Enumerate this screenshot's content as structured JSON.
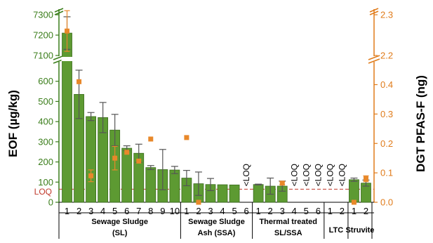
{
  "chart_data": {
    "type": "bar",
    "ylabel": "EOF (µg/kg)",
    "y2label": "DGT PFAS-F (ng)",
    "loq_label": "LOQ",
    "loq_value": 65,
    "below_loq_text": "<LOQ",
    "y_left_ticks_lower": [
      "0",
      "100",
      "200",
      "300",
      "400",
      "500",
      "600"
    ],
    "y_left_ticks_upper": [
      "7100",
      "7200",
      "7300"
    ],
    "y_right_ticks_lower": [
      "0.0",
      "0.1",
      "0.2",
      "0.3",
      "0.4"
    ],
    "y_right_ticks_upper": [
      "2.2",
      "2.3"
    ],
    "ylim_lower": [
      0,
      700
    ],
    "ylim_upper": [
      7100,
      7300
    ],
    "y2lim_lower": [
      0,
      0.48
    ],
    "y2lim_upper": [
      2.2,
      2.3
    ],
    "groups": [
      {
        "label_line1": "Sewage Sludge",
        "label_line2": "(SL)",
        "samples": [
          {
            "x": "1",
            "eof": 7210,
            "err": 80,
            "dgt": 2.26,
            "dgt_err": 0.05
          },
          {
            "x": "2",
            "eof": 535,
            "err": 120,
            "dgt": 0.41
          },
          {
            "x": "3",
            "eof": 425,
            "err": 20,
            "dgt": 0.09,
            "dgt_err": 0.02
          },
          {
            "x": "4",
            "eof": 420,
            "err": 75,
            "dgt": null
          },
          {
            "x": "5",
            "eof": 358,
            "err": 78,
            "dgt": 0.15,
            "dgt_err": 0.04
          },
          {
            "x": "6",
            "eof": 268,
            "err": 12,
            "dgt": 0.17
          },
          {
            "x": "7",
            "eof": 243,
            "err": 45,
            "dgt": 0.14
          },
          {
            "x": "8",
            "eof": 172,
            "err": 10,
            "dgt": 0.215
          },
          {
            "x": "9",
            "eof": 162,
            "err": 100,
            "dgt": null
          },
          {
            "x": "10",
            "eof": 160,
            "err": 18,
            "dgt": null
          }
        ]
      },
      {
        "label_line1": "Sewage Sludge",
        "label_line2": "Ash (SSA)",
        "samples": [
          {
            "x": "1",
            "eof": 120,
            "err": 38,
            "dgt": 0.22
          },
          {
            "x": "2",
            "eof": 92,
            "err": 58,
            "dgt": 0.0
          },
          {
            "x": "3",
            "eof": 88,
            "err": 30,
            "dgt": null
          },
          {
            "x": "4",
            "eof": 87,
            "err": 0,
            "dgt": null
          },
          {
            "x": "5",
            "eof": 86,
            "err": 0,
            "dgt": null
          },
          {
            "x": "6",
            "eof": null,
            "below_loq": true,
            "dgt": null
          }
        ]
      },
      {
        "label_line1": "Thermal treated",
        "label_line2": "SL/SSA",
        "samples": [
          {
            "x": "1",
            "eof": 88,
            "err": 2,
            "dgt": null
          },
          {
            "x": "2",
            "eof": 80,
            "err": 40,
            "dgt": null
          },
          {
            "x": "3",
            "eof": 80,
            "err": 25,
            "dgt": 0.065,
            "dgt_err": 0.005
          },
          {
            "x": "4",
            "eof": null,
            "below_loq": true,
            "dgt": null
          },
          {
            "x": "5",
            "eof": null,
            "below_loq": true,
            "dgt": null
          },
          {
            "x": "6",
            "eof": null,
            "below_loq": true,
            "dgt": null
          }
        ]
      },
      {
        "label_line1": "LTC",
        "label_line2": "",
        "samples": [
          {
            "x": "1",
            "eof": null,
            "below_loq": true,
            "dgt": null
          },
          {
            "x": "2",
            "eof": null,
            "below_loq": true,
            "dgt": null
          }
        ]
      },
      {
        "label_line1": "Struvite",
        "label_line2": "",
        "samples": [
          {
            "x": "1",
            "eof": 112,
            "err": 8,
            "dgt": 0.0
          },
          {
            "x": "2",
            "eof": 95,
            "err": 15,
            "dgt": 0.08,
            "dgt_err": 0.01
          }
        ]
      }
    ],
    "colors": {
      "bar": "#5d9a32",
      "bar_edge": "#3a6b1c",
      "error": "#555555",
      "dgt_marker": "#e8882a",
      "left_axis": "#3a7d1a",
      "right_axis": "#e07b1a",
      "loq_line": "#c0392b"
    }
  }
}
